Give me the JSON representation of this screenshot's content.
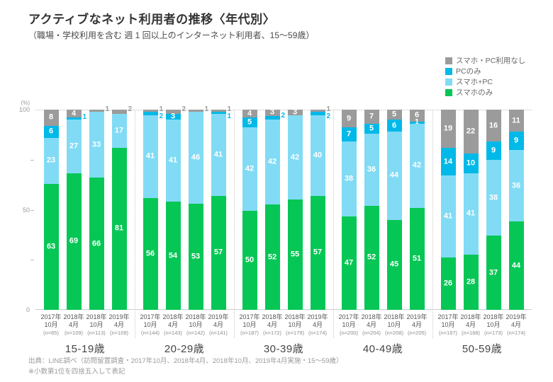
{
  "header": {
    "title": "アクティブなネット利用者の推移〈年代別〉",
    "subtitle": "（職場・学校利用を含む 週 1 回以上のインターネット利用者、15〜59歳）"
  },
  "footer": {
    "source": "出典：LINE調べ（訪問留置調査・2017年10月、2018年4月、2018年10月、2019年4月実施・15〜59歳）",
    "note": "※小数第1位を四捨五入して表記"
  },
  "chart_data": {
    "type": "bar",
    "stacked": true,
    "unit_label": "(%)",
    "ylim": [
      0,
      100
    ],
    "y_major_ticks": [
      100,
      50,
      0
    ],
    "y_minor_ticks": [
      75,
      50,
      25
    ],
    "grid": "off",
    "legend_position": "top-right",
    "series": [
      {
        "key": "none",
        "label": "スマホ・PC利用なし",
        "color": "#9B9B9B"
      },
      {
        "key": "pc_only",
        "label": "PCのみ",
        "color": "#00B9E8"
      },
      {
        "key": "smart_pc",
        "label": "スマホ+PC",
        "color": "#82DBF5"
      },
      {
        "key": "smart_only",
        "label": "スマホのみ",
        "color": "#06C755"
      }
    ],
    "groups": [
      {
        "label": "15-19歳",
        "bars": [
          {
            "period": "2017年\n10月",
            "n": "(n=65)",
            "segments": [
              {
                "series": "none",
                "value": 8,
                "label_pos": "in"
              },
              {
                "series": "pc_only",
                "value": 6,
                "label_pos": "in"
              },
              {
                "series": "smart_pc",
                "value": 23,
                "label_pos": "in"
              },
              {
                "series": "smart_only",
                "value": 63,
                "label_pos": "in"
              }
            ]
          },
          {
            "period": "2018年\n4月",
            "n": "(n=109)",
            "segments": [
              {
                "series": "none",
                "value": 4,
                "label_pos": "in"
              },
              {
                "series": "pc_only",
                "value": 1,
                "label_pos": "out"
              },
              {
                "series": "smart_pc",
                "value": 27,
                "label_pos": "in"
              },
              {
                "series": "smart_only",
                "value": 69,
                "label_pos": "in"
              }
            ]
          },
          {
            "period": "2018年\n10月",
            "n": "(n=113)",
            "segments": [
              {
                "series": "none",
                "value": 1,
                "label_pos": "out"
              },
              {
                "series": "smart_pc",
                "value": 33,
                "label_pos": "in"
              },
              {
                "series": "smart_only",
                "value": 66,
                "label_pos": "in"
              }
            ]
          },
          {
            "period": "2019年\n4月",
            "n": "(n=109)",
            "segments": [
              {
                "series": "none",
                "value": 2,
                "label_pos": "out"
              },
              {
                "series": "smart_pc",
                "value": 17,
                "label_pos": "in"
              },
              {
                "series": "smart_only",
                "value": 81,
                "label_pos": "in"
              }
            ]
          }
        ]
      },
      {
        "label": "20-29歳",
        "bars": [
          {
            "period": "2017年\n10月",
            "n": "(n=144)",
            "segments": [
              {
                "series": "none",
                "value": 1,
                "label_pos": "out"
              },
              {
                "series": "pc_only",
                "value": 2,
                "label_pos": "out"
              },
              {
                "series": "smart_pc",
                "value": 41,
                "label_pos": "in"
              },
              {
                "series": "smart_only",
                "value": 56,
                "label_pos": "in"
              }
            ]
          },
          {
            "period": "2018年\n4月",
            "n": "(n=143)",
            "segments": [
              {
                "series": "none",
                "value": 2,
                "label_pos": "out"
              },
              {
                "series": "pc_only",
                "value": 3,
                "label_pos": "in"
              },
              {
                "series": "smart_pc",
                "value": 41,
                "label_pos": "in"
              },
              {
                "series": "smart_only",
                "value": 54,
                "label_pos": "in"
              }
            ]
          },
          {
            "period": "2018年\n10月",
            "n": "(n=142)",
            "segments": [
              {
                "series": "none",
                "value": 1,
                "label_pos": "out"
              },
              {
                "series": "smart_pc",
                "value": 46,
                "label_pos": "in"
              },
              {
                "series": "smart_only",
                "value": 53,
                "label_pos": "in"
              }
            ]
          },
          {
            "period": "2019年\n4月",
            "n": "(n=141)",
            "segments": [
              {
                "series": "none",
                "value": 1,
                "label_pos": "out"
              },
              {
                "series": "pc_only",
                "value": 1,
                "label_pos": "out"
              },
              {
                "series": "smart_pc",
                "value": 41,
                "label_pos": "in"
              },
              {
                "series": "smart_only",
                "value": 57,
                "label_pos": "in"
              }
            ]
          }
        ]
      },
      {
        "label": "30-39歳",
        "bars": [
          {
            "period": "2017年\n10月",
            "n": "(n=187)",
            "segments": [
              {
                "series": "none",
                "value": 4,
                "label_pos": "in"
              },
              {
                "series": "pc_only",
                "value": 5,
                "label_pos": "in"
              },
              {
                "series": "smart_pc",
                "value": 42,
                "label_pos": "in"
              },
              {
                "series": "smart_only",
                "value": 50,
                "label_pos": "in"
              }
            ]
          },
          {
            "period": "2018年\n4月",
            "n": "(n=172)",
            "segments": [
              {
                "series": "none",
                "value": 3,
                "label_pos": "in"
              },
              {
                "series": "pc_only",
                "value": 2,
                "label_pos": "out"
              },
              {
                "series": "smart_pc",
                "value": 42,
                "label_pos": "in"
              },
              {
                "series": "smart_only",
                "value": 52,
                "label_pos": "in"
              }
            ]
          },
          {
            "period": "2018年\n10月",
            "n": "(n=179)",
            "segments": [
              {
                "series": "none",
                "value": 3,
                "label_pos": "in"
              },
              {
                "series": "smart_pc",
                "value": 42,
                "label_pos": "in"
              },
              {
                "series": "smart_only",
                "value": 55,
                "label_pos": "in"
              }
            ]
          },
          {
            "period": "2019年\n4月",
            "n": "(n=174)",
            "segments": [
              {
                "series": "none",
                "value": 1,
                "label_pos": "out"
              },
              {
                "series": "pc_only",
                "value": 2,
                "label_pos": "out"
              },
              {
                "series": "smart_pc",
                "value": 40,
                "label_pos": "in"
              },
              {
                "series": "smart_only",
                "value": 57,
                "label_pos": "in"
              }
            ]
          }
        ]
      },
      {
        "label": "40-49歳",
        "bars": [
          {
            "period": "2017年\n10月",
            "n": "(n=200)",
            "segments": [
              {
                "series": "none",
                "value": 9,
                "label_pos": "in"
              },
              {
                "series": "pc_only",
                "value": 7,
                "label_pos": "in"
              },
              {
                "series": "smart_pc",
                "value": 38,
                "label_pos": "in"
              },
              {
                "series": "smart_only",
                "value": 47,
                "label_pos": "in"
              }
            ]
          },
          {
            "period": "2018年\n4月",
            "n": "(n=204)",
            "segments": [
              {
                "series": "none",
                "value": 7,
                "label_pos": "in"
              },
              {
                "series": "pc_only",
                "value": 5,
                "label_pos": "in"
              },
              {
                "series": "smart_pc",
                "value": 36,
                "label_pos": "in"
              },
              {
                "series": "smart_only",
                "value": 52,
                "label_pos": "in"
              }
            ]
          },
          {
            "period": "2018年\n10月",
            "n": "(n=208)",
            "segments": [
              {
                "series": "none",
                "value": 5,
                "label_pos": "in"
              },
              {
                "series": "pc_only",
                "value": 6,
                "label_pos": "in"
              },
              {
                "series": "smart_pc",
                "value": 44,
                "label_pos": "in"
              },
              {
                "series": "smart_only",
                "value": 45,
                "label_pos": "in"
              }
            ]
          },
          {
            "period": "2019年\n4月",
            "n": "(n=205)",
            "segments": [
              {
                "series": "none",
                "value": 6,
                "label_pos": "in"
              },
              {
                "series": "pc_only",
                "value": 1,
                "label_pos": "in"
              },
              {
                "series": "smart_pc",
                "value": 42,
                "label_pos": "in"
              },
              {
                "series": "smart_only",
                "value": 51,
                "label_pos": "in"
              }
            ]
          }
        ]
      },
      {
        "label": "50-59歳",
        "bars": [
          {
            "period": "2017年\n10月",
            "n": "(n=167)",
            "segments": [
              {
                "series": "none",
                "value": 19,
                "label_pos": "in"
              },
              {
                "series": "pc_only",
                "value": 14,
                "label_pos": "in"
              },
              {
                "series": "smart_pc",
                "value": 41,
                "label_pos": "in"
              },
              {
                "series": "smart_only",
                "value": 26,
                "label_pos": "in"
              }
            ]
          },
          {
            "period": "2018年\n4月",
            "n": "(n=168)",
            "segments": [
              {
                "series": "none",
                "value": 22,
                "label_pos": "in"
              },
              {
                "series": "pc_only",
                "value": 10,
                "label_pos": "in"
              },
              {
                "series": "smart_pc",
                "value": 41,
                "label_pos": "in"
              },
              {
                "series": "smart_only",
                "value": 28,
                "label_pos": "in"
              }
            ]
          },
          {
            "period": "2018年\n10月",
            "n": "(n=173)",
            "segments": [
              {
                "series": "none",
                "value": 16,
                "label_pos": "in"
              },
              {
                "series": "pc_only",
                "value": 9,
                "label_pos": "in"
              },
              {
                "series": "smart_pc",
                "value": 38,
                "label_pos": "in"
              },
              {
                "series": "smart_only",
                "value": 37,
                "label_pos": "in"
              }
            ]
          },
          {
            "period": "2019年\n4月",
            "n": "(n=174)",
            "segments": [
              {
                "series": "none",
                "value": 11,
                "label_pos": "in"
              },
              {
                "series": "pc_only",
                "value": 9,
                "label_pos": "in"
              },
              {
                "series": "smart_pc",
                "value": 36,
                "label_pos": "in"
              },
              {
                "series": "smart_only",
                "value": 44,
                "label_pos": "in"
              }
            ]
          }
        ]
      }
    ]
  }
}
